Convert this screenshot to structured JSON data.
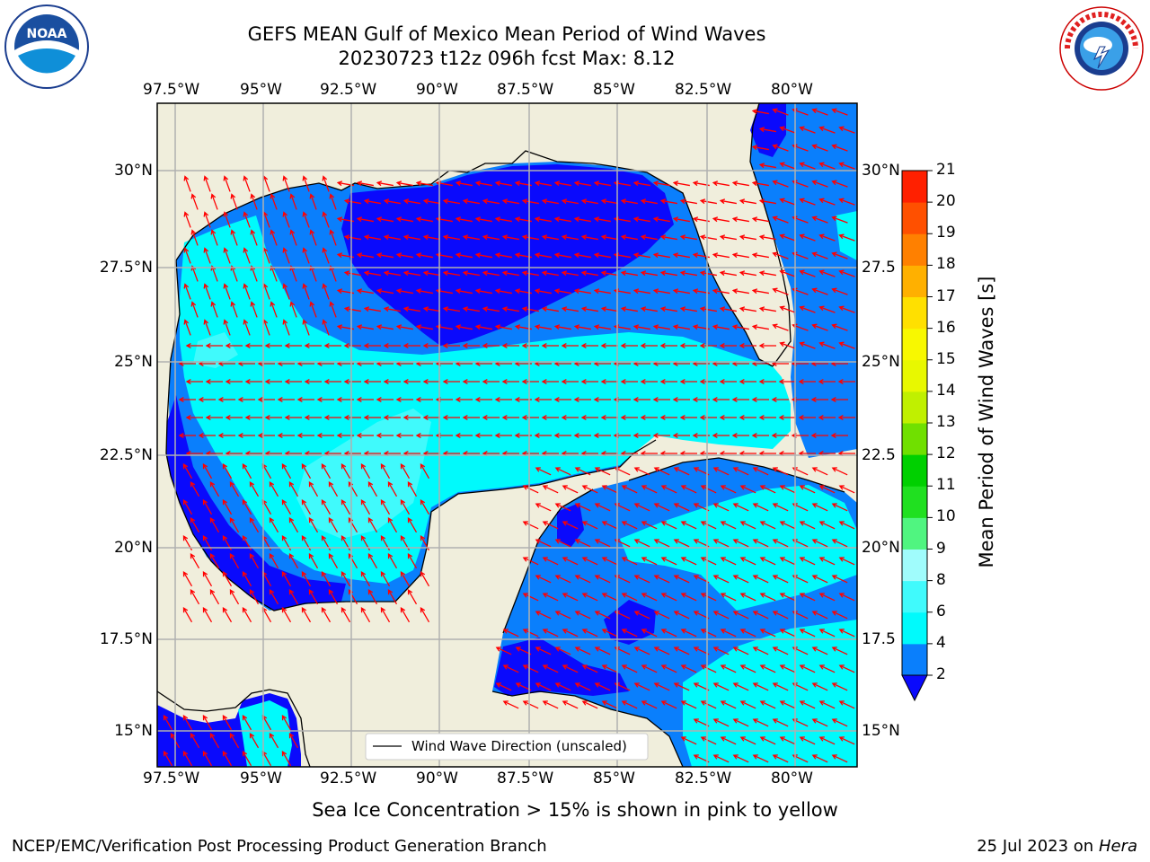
{
  "title_line1": "GEFS MEAN Gulf of Mexico Mean Period of Wind Waves",
  "title_line2": "20230723 t12z 096h fcst   Max: 8.12",
  "lon_labels": [
    "97.5°W",
    "95°W",
    "92.5°W",
    "90°W",
    "87.5°W",
    "85°W",
    "82.5°W",
    "80°W"
  ],
  "lat_labels_left": [
    "30°N",
    "27.5°N",
    "25°N",
    "22.5°N",
    "20°N",
    "17.5°N",
    "15°N"
  ],
  "lat_labels_right": [
    "30°N",
    "27.5",
    "25°N",
    "22.5",
    "20°N",
    "17.5",
    "15°N"
  ],
  "legend_label": "Wind Wave Direction (unscaled)",
  "colorbar": {
    "label": "Mean Period of Wind Waves [s]",
    "ticks": [
      "2",
      "4",
      "6",
      "8",
      "9",
      "10",
      "11",
      "12",
      "13",
      "14",
      "15",
      "16",
      "17",
      "18",
      "19",
      "20",
      "21"
    ],
    "colors": [
      "#0a0afc",
      "#0a7ffc",
      "#00fafc",
      "#40fafc",
      "#a0fcfc",
      "#50f580",
      "#20e020",
      "#00d000",
      "#70e000",
      "#c0f000",
      "#e8f800",
      "#f8f800",
      "#ffe000",
      "#ffb000",
      "#ff8000",
      "#ff5000",
      "#ff2000",
      "#ff0000"
    ]
  },
  "note": "Sea Ice Concentration > 15% is shown in pink to yellow",
  "footer_left": "NCEP/EMC/Verification Post Processing Product Generation Branch",
  "footer_right_date": "25 Jul 2023 on ",
  "footer_right_host": "Hera",
  "logos": {
    "noaa_text": "NOAA",
    "noaa_ring": "NATIONAL OCEANIC AND ATMOSPHERIC ADMINISTRATION · U.S. DEPARTMENT OF COMMERCE",
    "nws_ring": "NATIONAL WEATHER SERVICE"
  }
}
